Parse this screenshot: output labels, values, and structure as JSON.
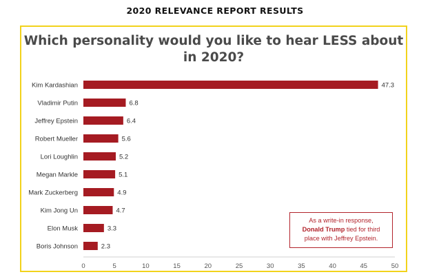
{
  "header": "2020 RELEVANCE REPORT RESULTS",
  "chart_data": {
    "type": "bar",
    "orientation": "horizontal",
    "title": "Which personality would you like to hear LESS about in 2020?",
    "categories": [
      "Kim Kardashian",
      "Vladimir Putin",
      "Jeffrey Epstein",
      "Robert Mueller",
      "Lori Loughlin",
      "Megan Markle",
      "Mark Zuckerberg",
      "Kim Jong Un",
      "Elon Musk",
      "Boris Johnson"
    ],
    "values": [
      47.3,
      6.8,
      6.4,
      5.6,
      5.2,
      5.1,
      4.9,
      4.7,
      3.3,
      2.3
    ],
    "value_labels": [
      "47.3",
      "6.8",
      "6.4",
      "5.6",
      "5.2",
      "5.1",
      "4.9",
      "4.7",
      "3.3",
      "2.3"
    ],
    "xlim": [
      0,
      50
    ],
    "xticks": [
      "0",
      "5",
      "10",
      "15",
      "20",
      "25",
      "30",
      "35",
      "40",
      "45",
      "50"
    ],
    "xlabel": "",
    "ylabel": "",
    "grid": false,
    "bar_color": "#a51b22"
  },
  "note": {
    "line1": "As a write-in response,",
    "highlight": "Donald Trump",
    "line2_rest": " tied for third",
    "line3": "place with Jeffrey Epstein."
  }
}
